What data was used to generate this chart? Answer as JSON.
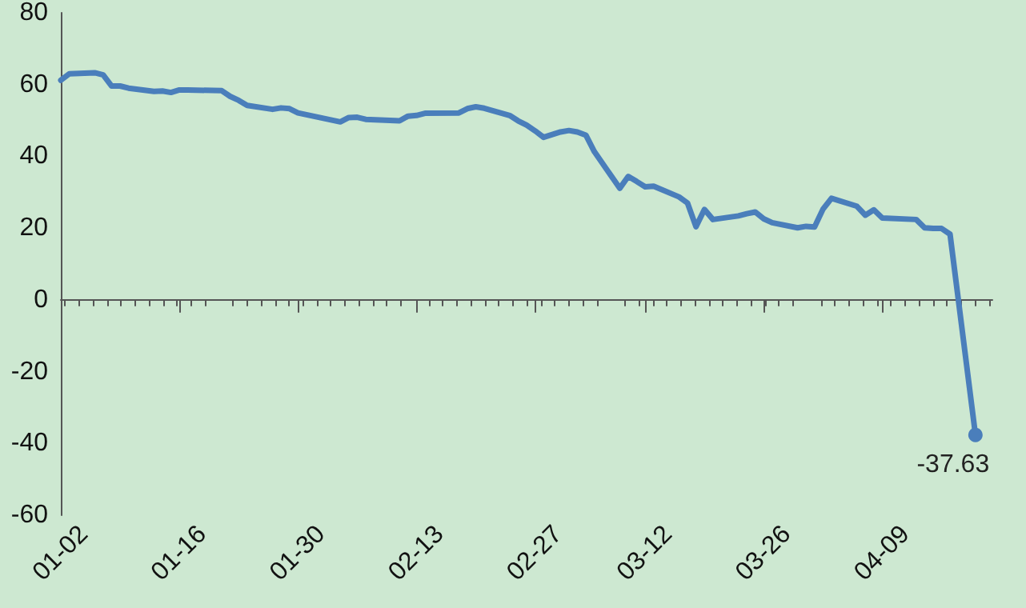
{
  "chart_data": {
    "type": "line",
    "x": [
      "--01-02",
      "--01-03",
      "--01-06",
      "--01-07",
      "--01-08",
      "--01-09",
      "--01-10",
      "--01-13",
      "--01-14",
      "--01-15",
      "--01-16",
      "--01-17",
      "--01-21",
      "--01-22",
      "--01-23",
      "--01-24",
      "--01-27",
      "--01-28",
      "--01-29",
      "--01-30",
      "--01-31",
      "--02-03",
      "--02-04",
      "--02-05",
      "--02-06",
      "--02-07",
      "--02-11",
      "--02-12",
      "--02-13",
      "--02-14",
      "--02-18",
      "--02-19",
      "--02-20",
      "--02-21",
      "--02-24",
      "--02-25",
      "--02-26",
      "--02-27",
      "--02-28",
      "--03-02",
      "--03-03",
      "--03-04",
      "--03-05",
      "--03-06",
      "--03-09",
      "--03-10",
      "--03-11",
      "--03-12",
      "--03-13",
      "--03-16",
      "--03-17",
      "--03-18",
      "--03-19",
      "--03-20",
      "--03-23",
      "--03-24",
      "--03-25",
      "--03-26",
      "--03-27",
      "--03-30",
      "--03-31",
      "--04-01",
      "--04-02",
      "--04-03",
      "--04-06",
      "--04-07",
      "--04-08",
      "--04-09",
      "--04-13",
      "--04-14",
      "--04-15",
      "--04-16",
      "--04-17",
      "--04-20"
    ],
    "series": [
      {
        "color": "#4a7ebb",
        "values": [
          61.2,
          63.0,
          63.3,
          62.7,
          59.6,
          59.6,
          59.0,
          58.1,
          58.2,
          57.8,
          58.5,
          58.5,
          58.3,
          56.7,
          55.6,
          54.2,
          53.1,
          53.5,
          53.3,
          52.1,
          51.6,
          50.1,
          49.6,
          50.8,
          50.9,
          50.3,
          49.9,
          51.2,
          51.4,
          52.0,
          52.1,
          53.3,
          53.8,
          53.4,
          51.4,
          49.9,
          48.7,
          47.1,
          45.3,
          46.8,
          47.2,
          46.8,
          45.9,
          41.3,
          31.1,
          34.4,
          33.0,
          31.5,
          31.7,
          28.7,
          27.0,
          20.4,
          25.2,
          22.4,
          23.4,
          24.0,
          24.5,
          22.6,
          21.5,
          20.1,
          20.5,
          20.3,
          25.3,
          28.3,
          26.1,
          23.6,
          25.1,
          22.8,
          22.4,
          20.1,
          19.9,
          19.9,
          18.3,
          -37.63
        ],
        "value_labels": [
          null,
          null,
          null,
          null,
          null,
          null,
          null,
          null,
          null,
          null,
          null,
          null,
          null,
          null,
          null,
          null,
          null,
          null,
          null,
          null,
          null,
          null,
          null,
          null,
          null,
          null,
          null,
          null,
          null,
          null,
          null,
          null,
          null,
          null,
          null,
          null,
          null,
          null,
          null,
          null,
          null,
          null,
          null,
          null,
          null,
          null,
          null,
          null,
          null,
          null,
          null,
          null,
          null,
          null,
          null,
          null,
          null,
          null,
          null,
          null,
          null,
          null,
          null,
          null,
          null,
          null,
          null,
          null,
          null,
          null,
          null,
          null,
          null,
          "-37.63"
        ]
      }
    ],
    "xlim": [
      "--01-02",
      "--04-22"
    ],
    "xticks": [
      {
        "value": "--01-02",
        "label": "01-02"
      },
      {
        "value": "--01-16",
        "label": "01-16"
      },
      {
        "value": "--01-30",
        "label": "01-30"
      },
      {
        "value": "--02-13",
        "label": "02-13"
      },
      {
        "value": "--02-27",
        "label": "02-27"
      },
      {
        "value": "--03-12",
        "label": "03-12"
      },
      {
        "value": "--03-26",
        "label": "03-26"
      },
      {
        "value": "--04-09",
        "label": "04-09"
      }
    ],
    "ylim": [
      -60,
      80
    ],
    "yticks": [
      -60,
      -40,
      -20,
      0,
      20,
      40,
      60,
      80
    ]
  }
}
